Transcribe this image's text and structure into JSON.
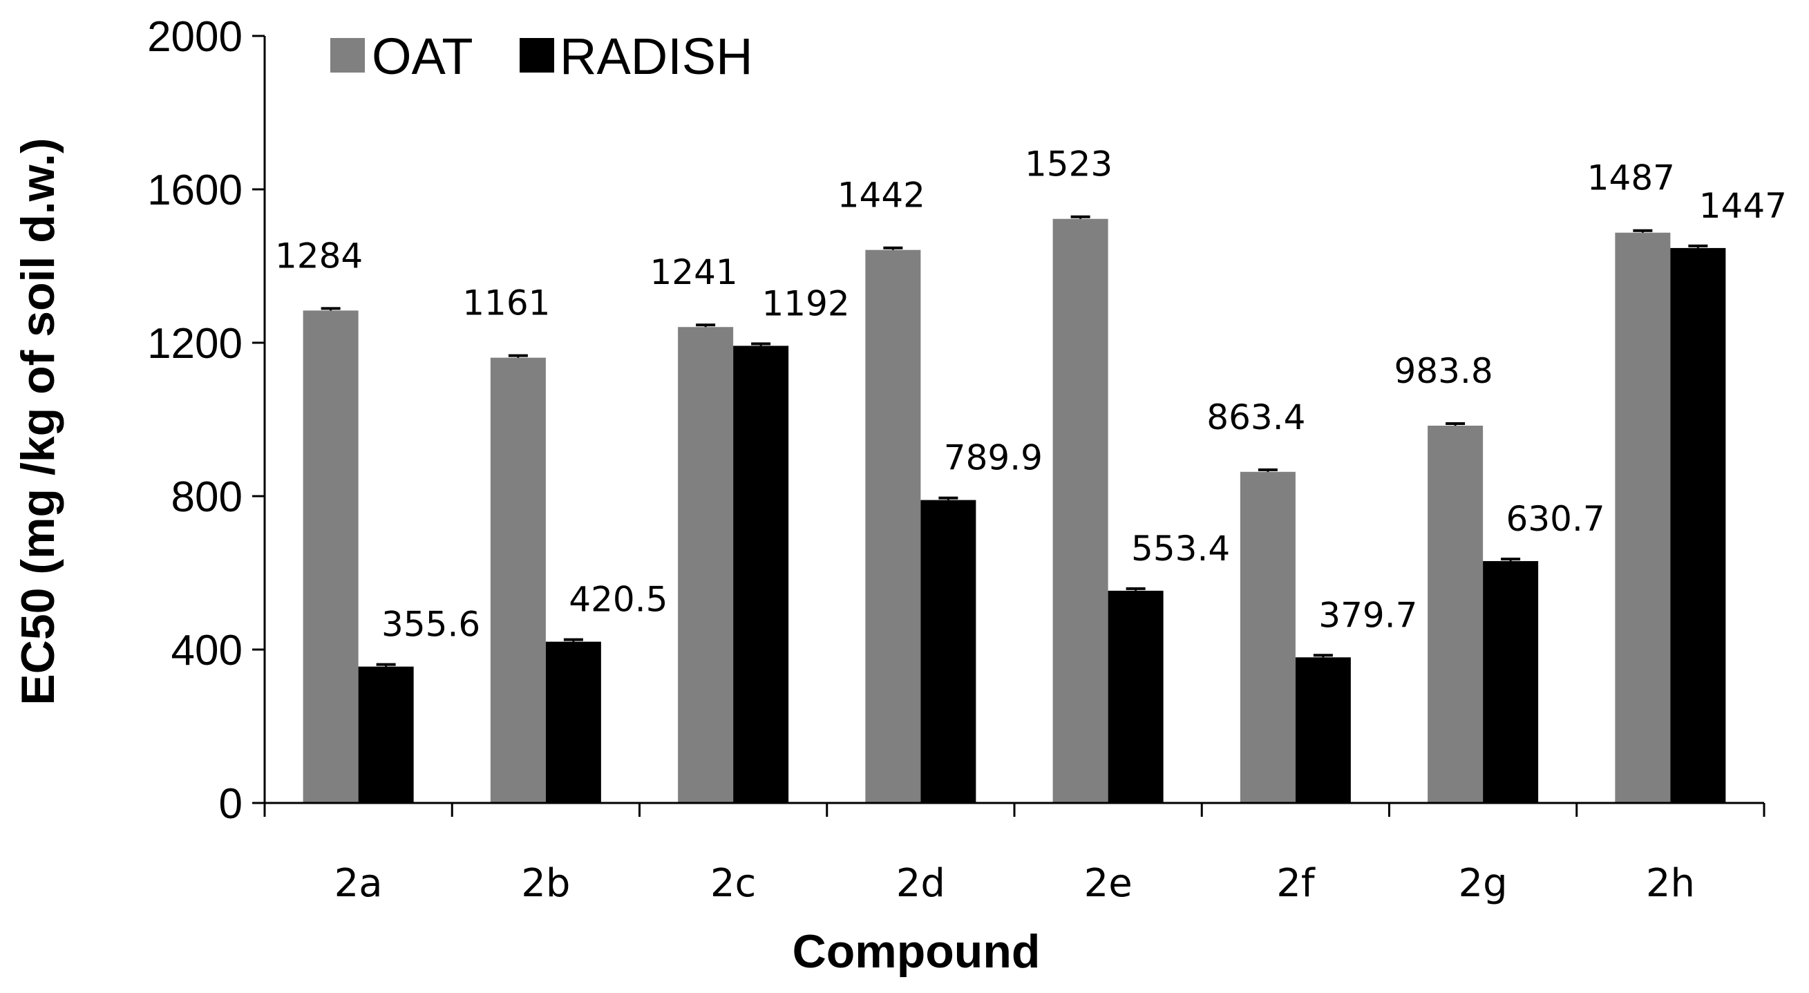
{
  "chart_data": {
    "type": "bar",
    "xlabel": "Compound",
    "ylabel": "EC50 (mg /kg of soil d.w.)",
    "ylim": [
      0,
      2000
    ],
    "yticks": [
      0,
      400,
      800,
      1200,
      1600,
      2000
    ],
    "grid": false,
    "legend_position": "top-left",
    "categories": [
      "2a",
      "2b",
      "2c",
      "2d",
      "2e",
      "2f",
      "2g",
      "2h"
    ],
    "series": [
      {
        "name": "OAT",
        "color": "#808080",
        "values": [
          1284,
          1161,
          1241,
          1442,
          1523,
          863.4,
          983.8,
          1487
        ],
        "labels": [
          "1284",
          "1161",
          "1241",
          "1442",
          "1523",
          "863.4",
          "983.8",
          "1487"
        ]
      },
      {
        "name": "RADISH",
        "color": "#000000",
        "values": [
          355.6,
          420.5,
          1192,
          789.9,
          553.4,
          379.7,
          630.7,
          1447
        ],
        "labels": [
          "355.6",
          "420.5",
          "1192",
          "789.9",
          "553.4",
          "379.7",
          "630.7",
          "1447"
        ]
      }
    ]
  }
}
